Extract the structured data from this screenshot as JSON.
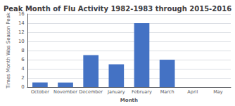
{
  "chart_data": {
    "type": "bar",
    "title": "Peak Month of Flu Activity 1982-1983 through 2015-2016",
    "xlabel": "Month",
    "ylabel": "Times Month Was Season Peak",
    "categories": [
      "October",
      "November",
      "December",
      "January",
      "February",
      "March",
      "April",
      "May"
    ],
    "values": [
      1,
      1,
      7,
      5,
      14,
      6,
      0,
      0
    ],
    "color": "#4472C4",
    "ylim": [
      0,
      16
    ],
    "yticks": [
      0,
      2,
      4,
      6,
      8,
      10,
      12,
      14,
      16
    ],
    "grid": true
  }
}
